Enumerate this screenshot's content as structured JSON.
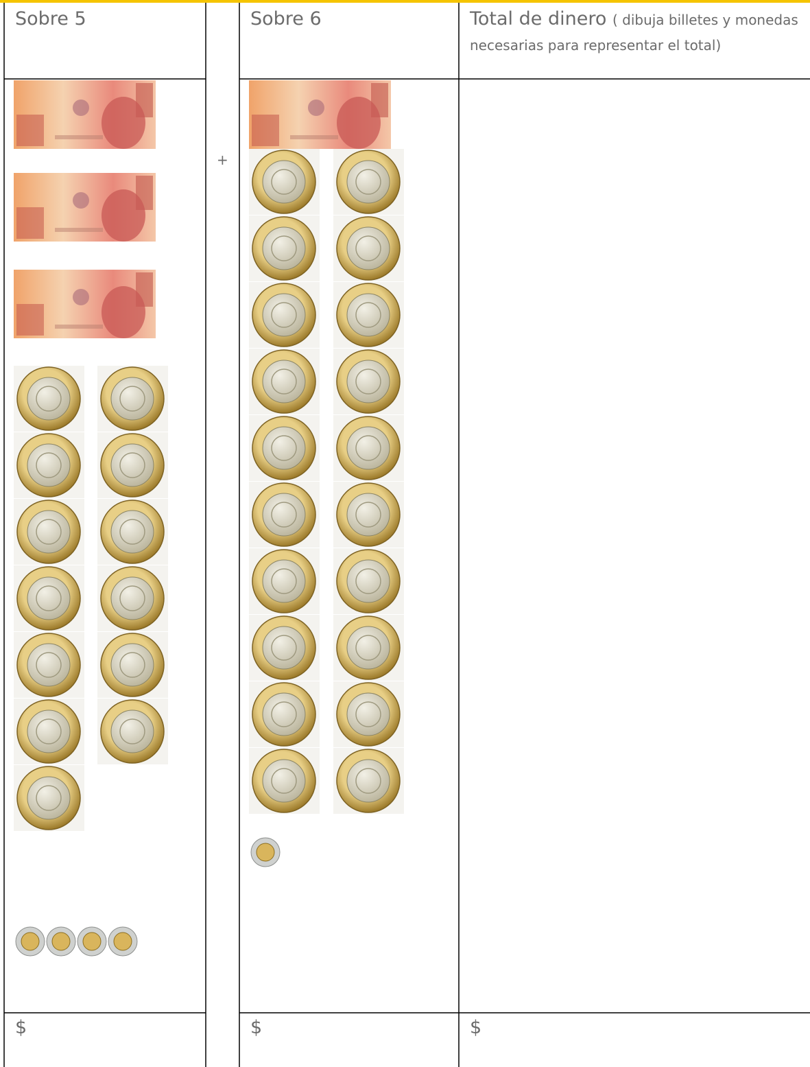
{
  "header": {
    "columns": [
      "Sobre 5",
      "Sobre 6"
    ],
    "total_title": "Total de dinero",
    "total_note": "( dibuja billetes y monedas necesarias para representar el total)"
  },
  "operator": "+",
  "footer": [
    "$",
    "$",
    "$"
  ]
}
